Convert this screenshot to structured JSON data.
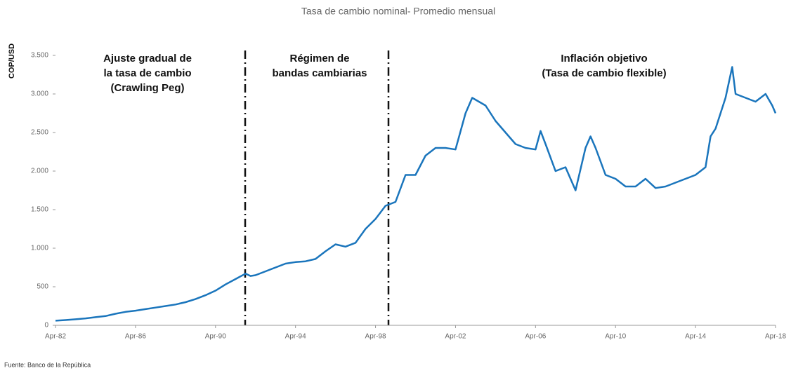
{
  "chart_data": {
    "type": "line",
    "title": "Tasa de cambio nominal- Promedio mensual",
    "y_label": "COP/USD",
    "source": "Fuente: Banco de la República",
    "annotations": [
      {
        "lines": [
          "Ajuste gradual de",
          "la tasa de cambio",
          "(Crawling Peg)"
        ]
      },
      {
        "lines": [
          "Régimen de",
          "bandas cambiarias"
        ]
      },
      {
        "lines": [
          "Inflación objetivo",
          "(Tasa de cambio flexible)"
        ]
      }
    ],
    "x": [
      "Apr-82",
      "Oct-82",
      "Apr-83",
      "Oct-83",
      "Apr-84",
      "Oct-84",
      "Apr-85",
      "Oct-85",
      "Apr-86",
      "Oct-86",
      "Apr-87",
      "Oct-87",
      "Apr-88",
      "Oct-88",
      "Apr-89",
      "Oct-89",
      "Apr-90",
      "Oct-90",
      "Apr-91",
      "Oct-91",
      "Jan-92",
      "Apr-92",
      "Oct-92",
      "Apr-93",
      "Oct-93",
      "Apr-94",
      "Oct-94",
      "Apr-95",
      "Oct-95",
      "Apr-96",
      "Oct-96",
      "Apr-97",
      "Oct-97",
      "Apr-98",
      "Oct-98",
      "Apr-99",
      "Oct-99",
      "Apr-00",
      "Oct-00",
      "Apr-01",
      "Oct-01",
      "Apr-02",
      "Oct-02",
      "Feb-03",
      "Oct-03",
      "Apr-04",
      "Oct-04",
      "Apr-05",
      "Oct-05",
      "Apr-06",
      "Jul-06",
      "Oct-06",
      "Apr-07",
      "Oct-07",
      "Apr-08",
      "Oct-08",
      "Jan-09",
      "Apr-09",
      "Oct-09",
      "Apr-10",
      "Oct-10",
      "Apr-11",
      "Oct-11",
      "Apr-12",
      "Oct-12",
      "Apr-13",
      "Oct-13",
      "Apr-14",
      "Oct-14",
      "Jan-15",
      "Apr-15",
      "Oct-15",
      "Feb-16",
      "Apr-16",
      "Oct-16",
      "Apr-17",
      "Oct-17",
      "Feb-18",
      "Apr-18"
    ],
    "series": [
      {
        "name": "COP/USD",
        "color": "#1a75bc",
        "values": [
          60,
          68,
          78,
          90,
          105,
          120,
          150,
          175,
          190,
          210,
          230,
          250,
          270,
          300,
          340,
          390,
          450,
          530,
          600,
          670,
          640,
          650,
          700,
          750,
          800,
          820,
          830,
          860,
          960,
          1050,
          1020,
          1070,
          1250,
          1380,
          1550,
          1600,
          1950,
          1950,
          2200,
          2300,
          2300,
          2280,
          2750,
          2950,
          2850,
          2650,
          2500,
          2350,
          2300,
          2280,
          2520,
          2350,
          2000,
          2050,
          1750,
          2300,
          2450,
          2300,
          1950,
          1900,
          1800,
          1800,
          1900,
          1780,
          1800,
          1850,
          1900,
          1950,
          2050,
          2450,
          2550,
          2950,
          3350,
          3000,
          2950,
          2900,
          3000,
          2850,
          2750
        ]
      }
    ],
    "xticks": [
      "Apr-82",
      "Apr-86",
      "Apr-90",
      "Apr-94",
      "Apr-98",
      "Apr-02",
      "Apr-06",
      "Apr-10",
      "Apr-14",
      "Apr-18"
    ],
    "ylim": [
      0,
      3500
    ],
    "yticks": [
      0,
      500,
      {
        "value": 1000,
        "label": "1.000"
      },
      {
        "value": 1500,
        "label": "1.500"
      },
      {
        "value": 2000,
        "label": "2.000"
      },
      {
        "value": 2500,
        "label": "2.500"
      },
      {
        "value": 3000,
        "label": "3.000"
      },
      {
        "value": 3500,
        "label": "3.500"
      }
    ]
  }
}
